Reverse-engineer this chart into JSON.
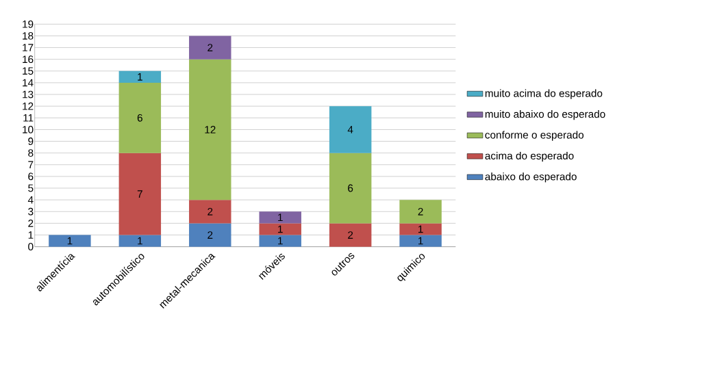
{
  "chart_data": {
    "type": "bar",
    "stacked": true,
    "categories": [
      "alimentícia",
      "automobilístico",
      "metal-mecanica",
      "móveis",
      "outros",
      "quimico"
    ],
    "series": [
      {
        "name": "abaixo do esperado",
        "color": "#4f81bd",
        "values": [
          1,
          1,
          2,
          1,
          null,
          1
        ]
      },
      {
        "name": "acima do esperado",
        "color": "#c0504d",
        "values": [
          null,
          7,
          2,
          1,
          2,
          1
        ]
      },
      {
        "name": "conforme o esperado",
        "color": "#9bbb59",
        "values": [
          null,
          6,
          12,
          null,
          6,
          2
        ]
      },
      {
        "name": "muito abaixo do esperado",
        "color": "#8064a2",
        "values": [
          null,
          null,
          2,
          1,
          null,
          null
        ]
      },
      {
        "name": "muito acima do esperado",
        "color": "#4bacc6",
        "values": [
          null,
          1,
          null,
          null,
          4,
          null
        ]
      }
    ],
    "ylim": [
      0,
      19
    ],
    "yticks": [
      0,
      1,
      2,
      3,
      4,
      5,
      6,
      7,
      8,
      9,
      10,
      11,
      12,
      13,
      14,
      15,
      16,
      17,
      18,
      19
    ],
    "grid": "y",
    "legend": "right",
    "data_labels": true
  }
}
